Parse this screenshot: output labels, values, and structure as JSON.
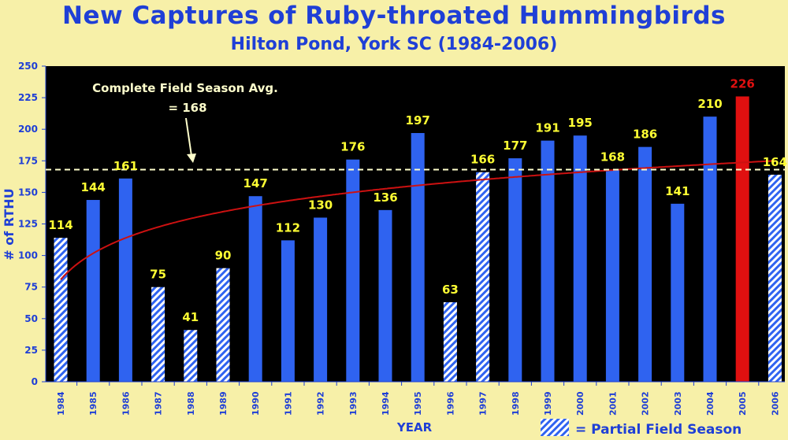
{
  "colors": {
    "background": "#f7f0a8",
    "plot_background": "#000000",
    "title": "#1f3fd6",
    "full_bar": "#2f63f0",
    "highlight_bar": "#e01010",
    "partial_stripe": "#2f63f0",
    "label": "#ffff33",
    "highlight_label": "#e01010",
    "trend": "#cc1111",
    "average_line": "#ffffcc"
  },
  "chart_data": {
    "type": "bar",
    "title": "New Captures of Ruby-throated Hummingbirds",
    "subtitle": "Hilton Pond, York SC (1984-2006)",
    "xlabel": "YEAR",
    "ylabel": "# of RTHU",
    "ylim": [
      0,
      250
    ],
    "yticks": [
      0,
      25,
      50,
      75,
      100,
      125,
      150,
      175,
      200,
      225,
      250
    ],
    "categories": [
      "1984",
      "1985",
      "1986",
      "1987",
      "1988",
      "1989",
      "1990",
      "1991",
      "1992",
      "1993",
      "1994",
      "1995",
      "1996",
      "1997",
      "1998",
      "1999",
      "2000",
      "2001",
      "2002",
      "2003",
      "2004",
      "2005",
      "2006"
    ],
    "values": [
      114,
      144,
      161,
      75,
      41,
      90,
      147,
      112,
      130,
      176,
      136,
      197,
      63,
      166,
      177,
      191,
      195,
      168,
      186,
      141,
      210,
      226,
      164
    ],
    "partial": [
      true,
      false,
      false,
      true,
      true,
      true,
      false,
      false,
      false,
      false,
      false,
      false,
      true,
      true,
      false,
      false,
      false,
      false,
      false,
      false,
      false,
      false,
      true
    ],
    "highlight": "2005",
    "average": {
      "value": 168,
      "label_line1": "Complete Field Season Avg.",
      "label_line2": "= 168"
    },
    "trend": "logarithmic",
    "legend": {
      "label": "= Partial Field Season",
      "placement": "bottom-right"
    }
  }
}
